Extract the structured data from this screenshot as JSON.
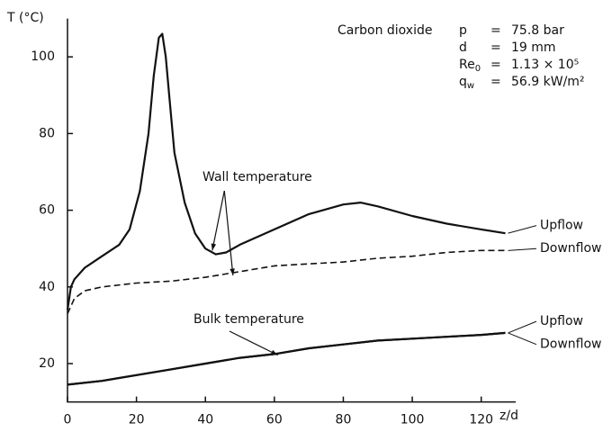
{
  "chart_data": {
    "type": "line",
    "y_label": "T (°C)",
    "x_label": "z/d",
    "xlim": [
      0,
      130
    ],
    "ylim": [
      10,
      110
    ],
    "xticks": [
      0,
      20,
      40,
      60,
      80,
      100,
      120
    ],
    "yticks": [
      20,
      40,
      60,
      80,
      100
    ],
    "parameters_title": "Carbon dioxide",
    "parameters": [
      {
        "symbol": "p",
        "sub": "",
        "value": "75.8 bar"
      },
      {
        "symbol": "d",
        "sub": "",
        "value": "19 mm"
      },
      {
        "symbol": "Re",
        "sub": "0",
        "value": "1.13 × 10⁵"
      },
      {
        "symbol": "q",
        "sub": "w",
        "value": "56.9 kW/m²"
      }
    ],
    "annotations": [
      "Wall temperature",
      "Bulk temperature"
    ],
    "series": [
      {
        "name": "Upflow",
        "color": "#111111",
        "dashed": false,
        "x": [
          0,
          1,
          2,
          5,
          10,
          15,
          18,
          21,
          23.5,
          25,
          26.5,
          27.5,
          28.5,
          29.5,
          31,
          34,
          37,
          40,
          43,
          46,
          50,
          60,
          70,
          80,
          85,
          90,
          100,
          110,
          120,
          127
        ],
        "values": [
          34,
          40,
          42,
          45,
          48,
          51,
          55,
          65,
          80,
          95,
          105,
          106,
          100,
          90,
          75,
          62,
          54,
          50,
          48.5,
          49,
          51,
          55,
          59,
          61.5,
          62,
          61,
          58.5,
          56.5,
          55,
          54
        ]
      },
      {
        "name": "Downflow",
        "color": "#111111",
        "dashed": true,
        "x": [
          0,
          2,
          5,
          10,
          20,
          30,
          40,
          50,
          60,
          70,
          80,
          90,
          100,
          110,
          120,
          127
        ],
        "values": [
          33,
          37,
          39,
          40,
          41,
          41.5,
          42.5,
          44,
          45.5,
          46,
          46.5,
          47.5,
          48,
          49,
          49.5,
          49.5
        ]
      },
      {
        "name": "Upflow",
        "color": "#111111",
        "dashed": false,
        "x": [
          0,
          10,
          20,
          30,
          40,
          50,
          60,
          70,
          80,
          90,
          100,
          110,
          120,
          127
        ],
        "values": [
          14.5,
          15.5,
          17,
          18.5,
          20,
          21.5,
          22.5,
          24,
          25,
          26,
          26.5,
          27,
          27.5,
          28
        ]
      },
      {
        "name": "Downflow",
        "color": "#111111",
        "dashed": false,
        "x": [
          0,
          10,
          20,
          30,
          40,
          50,
          60,
          70,
          80,
          90,
          100,
          110,
          120,
          127
        ],
        "values": [
          14.5,
          15.5,
          17,
          18.5,
          20,
          21.5,
          22.5,
          24,
          25,
          26,
          26.5,
          27,
          27.5,
          28
        ]
      }
    ]
  }
}
